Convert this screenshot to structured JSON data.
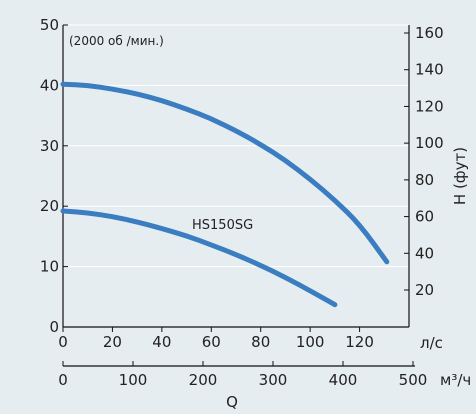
{
  "chart_data": {
    "type": "line",
    "annotation": "(2000 об /мин.)",
    "left_axis": {
      "ylim": [
        0,
        50
      ],
      "ticks": [
        0,
        10,
        20,
        30,
        40,
        50
      ],
      "tick_labels": [
        "0",
        "10",
        "20",
        "30",
        "40",
        "50"
      ]
    },
    "right_axis": {
      "label": "H (фут)",
      "ticks": [
        20,
        40,
        60,
        80,
        100,
        120,
        140,
        160
      ],
      "tick_labels": [
        "20",
        "40",
        "60",
        "80",
        "100",
        "120",
        "140",
        "160"
      ]
    },
    "x_axis_primary": {
      "unit": "л/с",
      "xlim": [
        0,
        140
      ],
      "ticks": [
        0,
        20,
        40,
        60,
        80,
        100,
        120
      ],
      "tick_labels": [
        "0",
        "20",
        "40",
        "60",
        "80",
        "100",
        "120"
      ]
    },
    "x_axis_secondary": {
      "unit": "м³/ч",
      "ticks": [
        0,
        100,
        200,
        300,
        400,
        500
      ],
      "tick_labels": [
        "0",
        "100",
        "200",
        "300",
        "400",
        "500"
      ]
    },
    "xlabel": "Q",
    "grid": true,
    "series_label": "HS150SG",
    "series": [
      {
        "x": [
          0,
          10,
          20,
          30,
          40,
          50,
          60,
          70,
          80,
          90,
          100,
          110,
          120,
          131
        ],
        "y": [
          40.2,
          40.0,
          39.4,
          38.6,
          37.5,
          36.1,
          34.5,
          32.5,
          30.2,
          27.6,
          24.5,
          21.0,
          17.0,
          10.8
        ]
      },
      {
        "x": [
          0,
          10,
          20,
          30,
          40,
          50,
          60,
          70,
          80,
          90,
          100,
          110
        ],
        "y": [
          19.2,
          18.9,
          18.3,
          17.4,
          16.3,
          15.1,
          13.6,
          12.0,
          10.2,
          8.2,
          6.0,
          3.7
        ]
      }
    ],
    "line_color": "#3b7dc1"
  }
}
